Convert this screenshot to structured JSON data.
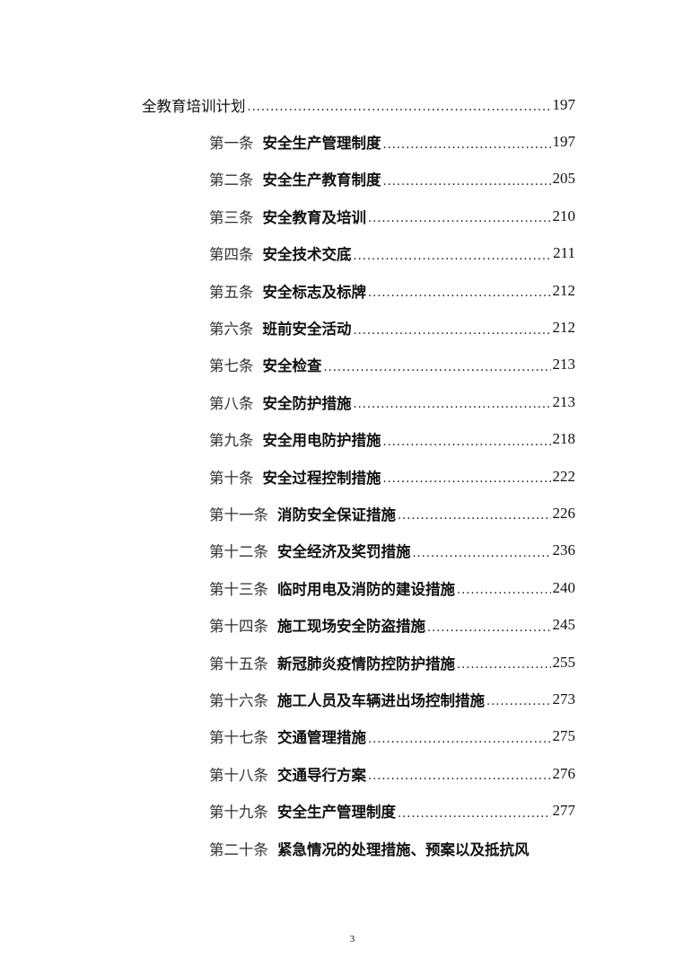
{
  "toc": {
    "heading": {
      "title": "全教育培训计划",
      "page": "197"
    },
    "items": [
      {
        "num": "第一条",
        "title": "安全生产管理制度",
        "page": "197"
      },
      {
        "num": "第二条",
        "title": "安全生产教育制度",
        "page": "205"
      },
      {
        "num": "第三条",
        "title": "安全教育及培训",
        "page": "210"
      },
      {
        "num": "第四条",
        "title": "安全技术交底",
        "page": "211"
      },
      {
        "num": "第五条",
        "title": "安全标志及标牌",
        "page": "212"
      },
      {
        "num": "第六条",
        "title": "班前安全活动",
        "page": "212"
      },
      {
        "num": "第七条",
        "title": "安全检查",
        "page": "213"
      },
      {
        "num": "第八条",
        "title": "安全防护措施",
        "page": "213"
      },
      {
        "num": "第九条",
        "title": "安全用电防护措施",
        "page": "218"
      },
      {
        "num": "第十条",
        "title": "安全过程控制措施",
        "page": "222"
      },
      {
        "num": "第十一条",
        "title": "消防安全保证措施",
        "page": "226"
      },
      {
        "num": "第十二条",
        "title": "安全经济及奖罚措施",
        "page": "236"
      },
      {
        "num": "第十三条",
        "title": "临时用电及消防的建设措施",
        "page": "240"
      },
      {
        "num": "第十四条",
        "title": "施工现场安全防盗措施",
        "page": "245"
      },
      {
        "num": "第十五条",
        "title": "新冠肺炎疫情防控防护措施",
        "page": "255"
      },
      {
        "num": "第十六条",
        "title": "施工人员及车辆进出场控制措施",
        "page": "273"
      },
      {
        "num": "第十七条",
        "title": "交通管理措施",
        "page": "275"
      },
      {
        "num": "第十八条",
        "title": "交通导行方案",
        "page": "276"
      },
      {
        "num": "第十九条",
        "title": "安全生产管理制度",
        "page": "277"
      },
      {
        "num": "第二十条",
        "title": "紧急情况的处理措施、预案以及抵抗风",
        "page": ""
      }
    ]
  },
  "footer": {
    "page_number": "3"
  }
}
